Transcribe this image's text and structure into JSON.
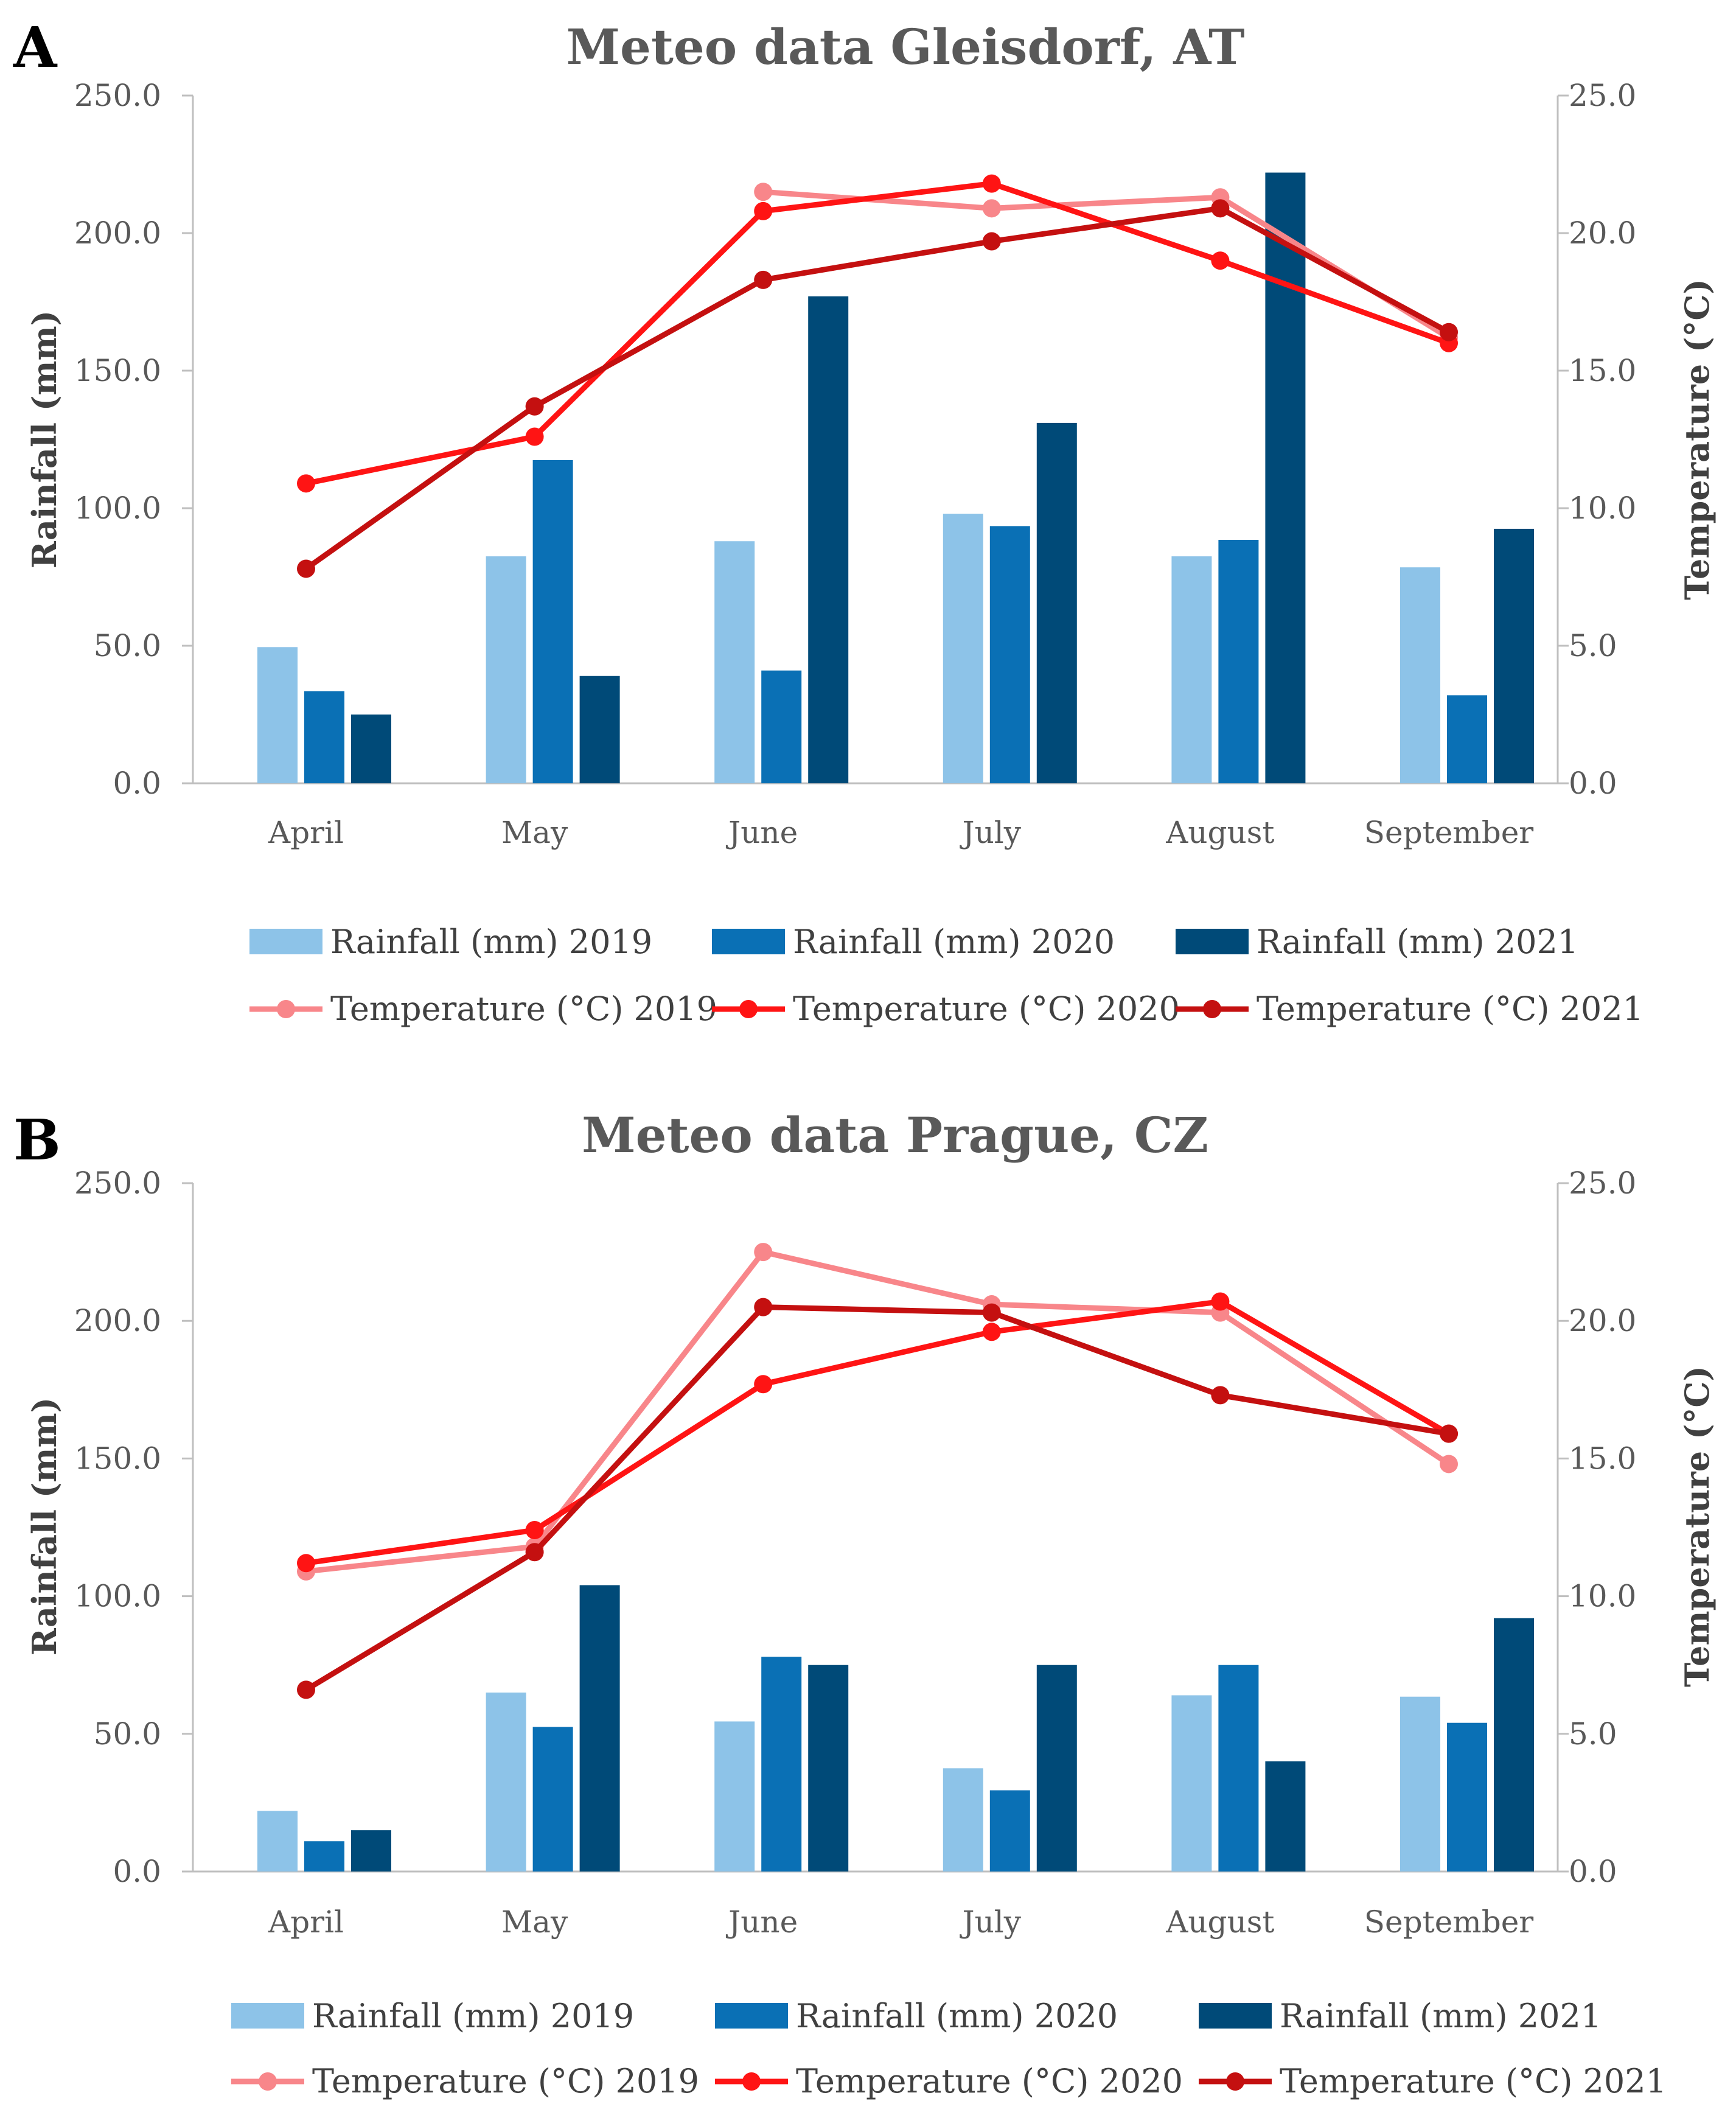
{
  "figure": {
    "colors": {
      "rain_2019": "#8DC3E8",
      "rain_2020": "#0A70B5",
      "rain_2021": "#004A78",
      "temp_2019": "#F8868A",
      "temp_2020": "#FF1414",
      "temp_2021": "#C41010",
      "axis": "#BFBFBF",
      "text": "#595959"
    }
  },
  "chart_data": [
    {
      "panel_label": "A",
      "type": "bar",
      "title": "Meteo data Gleisdorf, AT",
      "ylabel": "Rainfall (mm)",
      "y2label": "Temperature (°C)",
      "ylim": [
        0,
        250
      ],
      "y2lim": [
        0,
        25
      ],
      "yticks": [
        "0.0",
        "50.0",
        "100.0",
        "150.0",
        "200.0",
        "250.0"
      ],
      "y2ticks": [
        "0.0",
        "5.0",
        "10.0",
        "15.0",
        "20.0",
        "25.0"
      ],
      "categories": [
        "April",
        "May",
        "June",
        "July",
        "August",
        "September"
      ],
      "bar_series": [
        {
          "name": "Rainfall (mm) 2019",
          "values": [
            49.5,
            82.5,
            88.0,
            98.0,
            82.5,
            78.5
          ]
        },
        {
          "name": "Rainfall (mm) 2020",
          "values": [
            33.5,
            117.5,
            41.0,
            93.5,
            88.5,
            32.0
          ]
        },
        {
          "name": "Rainfall (mm) 2021",
          "values": [
            25.0,
            39.0,
            177.0,
            131.0,
            222.0,
            92.5
          ]
        }
      ],
      "line_series": [
        {
          "name": "Temperature (°C) 2019",
          "values": [
            null,
            null,
            21.5,
            20.9,
            21.3,
            16.2
          ]
        },
        {
          "name": "Temperature (°C) 2020",
          "values": [
            10.9,
            12.6,
            20.8,
            21.8,
            19.0,
            16.0
          ]
        },
        {
          "name": "Temperature (°C) 2021",
          "values": [
            7.8,
            13.7,
            18.3,
            19.7,
            20.9,
            16.4
          ]
        }
      ]
    },
    {
      "panel_label": "B",
      "type": "bar",
      "title": "Meteo data Prague, CZ",
      "ylabel": "Rainfall (mm)",
      "y2label": "Temperature (°C)",
      "ylim": [
        0,
        250
      ],
      "y2lim": [
        0,
        25
      ],
      "yticks": [
        "0.0",
        "50.0",
        "100.0",
        "150.0",
        "200.0",
        "250.0"
      ],
      "y2ticks": [
        "0.0",
        "5.0",
        "10.0",
        "15.0",
        "20.0",
        "25.0"
      ],
      "categories": [
        "April",
        "May",
        "June",
        "July",
        "August",
        "September"
      ],
      "bar_series": [
        {
          "name": "Rainfall (mm) 2019",
          "values": [
            22.0,
            65.0,
            54.5,
            37.5,
            64.0,
            63.5
          ]
        },
        {
          "name": "Rainfall (mm) 2020",
          "values": [
            11.0,
            52.5,
            78.0,
            29.5,
            75.0,
            54.0
          ]
        },
        {
          "name": "Rainfall (mm) 2021",
          "values": [
            15.0,
            104.0,
            75.0,
            75.0,
            40.0,
            92.0
          ]
        }
      ],
      "line_series": [
        {
          "name": "Temperature (°C) 2019",
          "values": [
            10.9,
            11.8,
            22.5,
            20.6,
            20.3,
            14.8
          ]
        },
        {
          "name": "Temperature (°C) 2020",
          "values": [
            11.2,
            12.4,
            17.7,
            19.6,
            20.7,
            15.9
          ]
        },
        {
          "name": "Temperature (°C) 2021",
          "values": [
            6.6,
            11.6,
            20.5,
            20.3,
            17.3,
            15.9
          ]
        }
      ]
    }
  ]
}
